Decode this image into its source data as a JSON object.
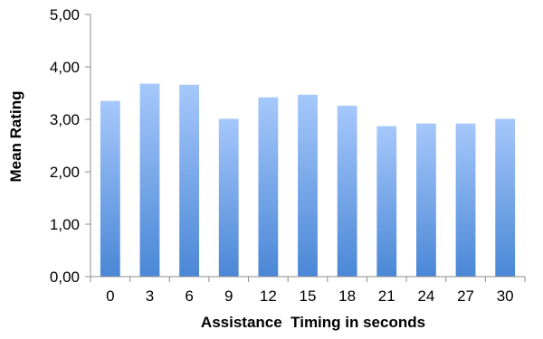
{
  "chart_data": {
    "type": "bar",
    "title": "",
    "xlabel": "Assistance  Timing in seconds",
    "ylabel": "Mean Rating",
    "categories": [
      "0",
      "3",
      "6",
      "9",
      "12",
      "15",
      "18",
      "21",
      "24",
      "27",
      "30"
    ],
    "values": [
      3.35,
      3.68,
      3.66,
      3.01,
      3.42,
      3.47,
      3.26,
      2.87,
      2.92,
      2.92,
      3.01
    ],
    "ylim": [
      0,
      5
    ],
    "yticks": [
      "0,00",
      "1,00",
      "2,00",
      "3,00",
      "4,00",
      "5,00"
    ],
    "grid": false,
    "legend": "none",
    "bar_color_top": "#a6c8fb",
    "bar_color_bottom": "#4a87d6",
    "axis_color": "#8c8c8c"
  }
}
